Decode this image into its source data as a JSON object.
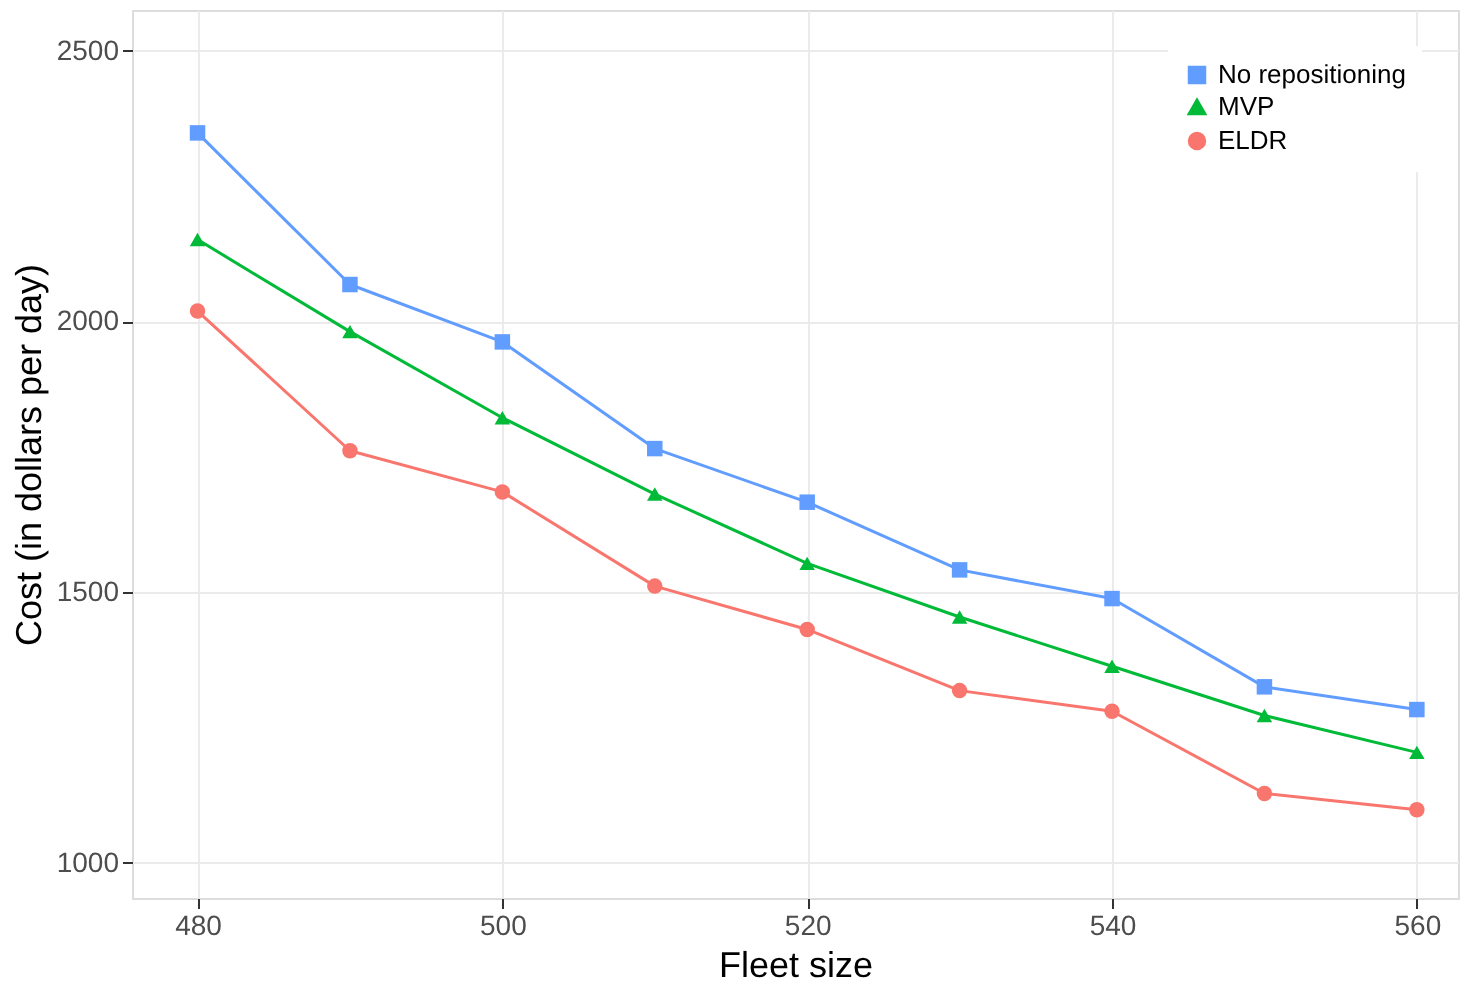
{
  "chart_data": {
    "type": "line",
    "xlabel": "Fleet size",
    "ylabel": "Cost (in dollars per day)",
    "x": [
      480,
      490,
      500,
      510,
      520,
      530,
      540,
      550,
      560
    ],
    "series": [
      {
        "name": "No repositioning",
        "color": "#619cff",
        "marker": "square",
        "values": [
          2348,
          2068,
          1962,
          1765,
          1666,
          1541,
          1488,
          1325,
          1283
        ]
      },
      {
        "name": "MVP",
        "color": "#00ba38",
        "marker": "triangle",
        "values": [
          2151,
          1981,
          1822,
          1681,
          1553,
          1454,
          1363,
          1272,
          1204
        ]
      },
      {
        "name": "ELDR",
        "color": "#f8766d",
        "marker": "circle",
        "values": [
          2019,
          1761,
          1685,
          1511,
          1431,
          1318,
          1280,
          1128,
          1098
        ]
      }
    ],
    "xlim": [
      475.7,
      562.7
    ],
    "xticks": [
      480,
      500,
      520,
      540,
      560
    ],
    "ylim": [
      935,
      2575
    ],
    "yticks": [
      1000,
      1500,
      2000,
      2500
    ],
    "grid": true,
    "legend": "top right",
    "line_style": "solid"
  }
}
